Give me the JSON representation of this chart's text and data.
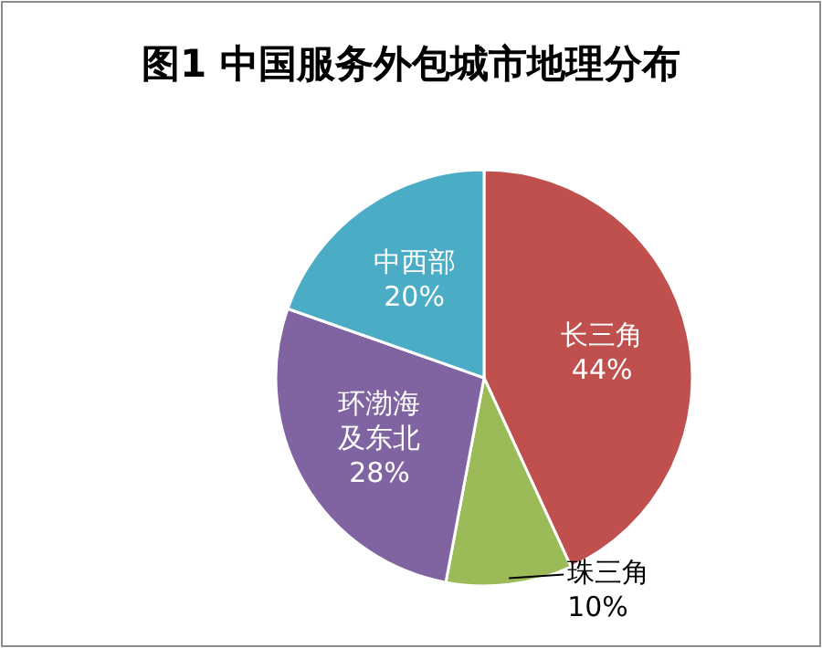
{
  "chart_data": {
    "type": "pie",
    "title": "图1  中国服务外包城市地理分布",
    "categories": [
      "长三角",
      "珠三角",
      "环渤海及东北",
      "中西部"
    ],
    "values": [
      44,
      10,
      28,
      20
    ],
    "value_labels": [
      "44%",
      "10%",
      "28%",
      "20%"
    ],
    "colors": [
      "#c0504d",
      "#9bbb59",
      "#8064a2",
      "#4bacc6"
    ]
  }
}
